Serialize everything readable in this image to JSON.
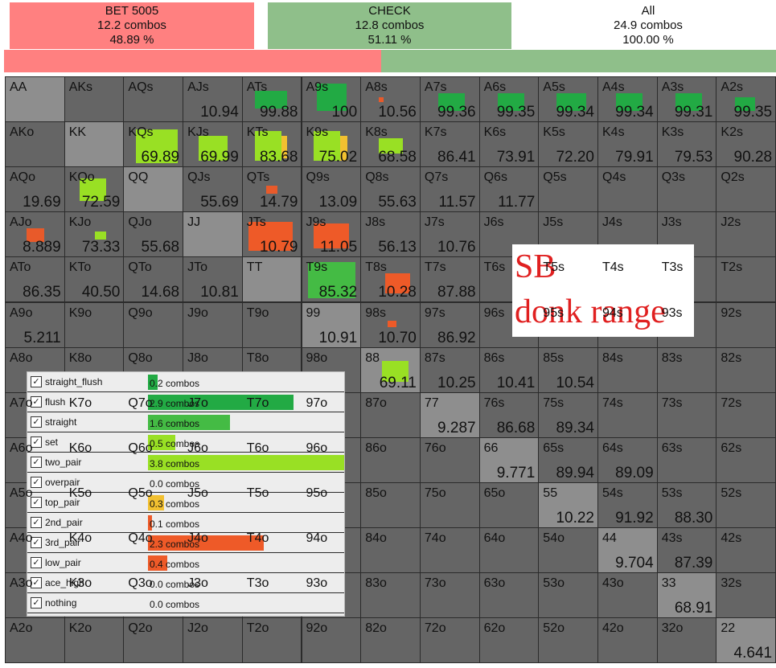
{
  "header": {
    "bet": {
      "label": "BET 5005",
      "combos": "12.2 combos",
      "pct": "48.89 %",
      "color": "#ff8080",
      "fraction": 0.4889
    },
    "check": {
      "label": "CHECK",
      "combos": "12.8 combos",
      "pct": "51.11 %",
      "color": "#8fbf8a",
      "fraction": 0.5111
    },
    "all": {
      "label": "All",
      "combos": "24.9 combos",
      "pct": "100.00 %"
    }
  },
  "grid": {
    "ranks": [
      "A",
      "K",
      "Q",
      "J",
      "T",
      "9",
      "8",
      "7",
      "6",
      "5",
      "4",
      "3",
      "2"
    ],
    "values": {
      "AJs": "10.94",
      "ATs": "99.88",
      "A9s": "100",
      "A8s": "10.56",
      "A7s": "99.36",
      "A6s": "99.35",
      "A5s": "99.34",
      "A4s": "99.34",
      "A3s": "99.31",
      "A2s": "99.35",
      "KQs": "69.89",
      "KJs": "69.99",
      "KTs": "83.68",
      "K9s": "75.02",
      "K8s": "68.58",
      "K7s": "86.41",
      "K6s": "73.91",
      "K5s": "72.20",
      "K4s": "79.91",
      "K3s": "79.53",
      "K2s": "90.28",
      "AQo": "19.69",
      "KQo": "72.59",
      "QJs": "55.69",
      "QTs": "14.79",
      "Q9s": "13.09",
      "Q8s": "55.63",
      "Q7s": "11.57",
      "Q6s": "11.77",
      "AJo": "8.889",
      "KJo": "73.33",
      "QJo": "55.68",
      "JTs": "10.79",
      "J9s": "11.05",
      "J8s": "56.13",
      "J7s": "10.76",
      "ATo": "86.35",
      "KTo": "40.50",
      "QTo": "14.68",
      "JTo": "10.81",
      "T9s": "85.32",
      "T8s": "10.28",
      "T7s": "87.88",
      "A9o": "5.211",
      "99": "10.91",
      "98s": "10.70",
      "97s": "86.92",
      "88": "69.11",
      "87s": "10.25",
      "86s": "10.41",
      "85s": "10.54",
      "77": "9.287",
      "76s": "86.68",
      "75s": "89.34",
      "66": "9.771",
      "65s": "89.94",
      "64s": "89.09",
      "55": "10.22",
      "54s": "91.92",
      "53s": "88.30",
      "44": "9.704",
      "43s": "87.39",
      "33": "68.91",
      "22": "4.641"
    },
    "markers": {
      "ATs": [
        [
          0.2,
          0.3,
          0.55,
          0.4,
          "#22aa44"
        ]
      ],
      "A9s": [
        [
          0.25,
          0.15,
          0.5,
          0.6,
          "#22aa44"
        ]
      ],
      "A8s": [
        [
          0.3,
          0.45,
          0.08,
          0.1,
          "#e85a2a"
        ]
      ],
      "A7s": [
        [
          0.3,
          0.35,
          0.45,
          0.4,
          "#22aa44"
        ]
      ],
      "A6s": [
        [
          0.3,
          0.35,
          0.45,
          0.4,
          "#22aa44"
        ]
      ],
      "A5s": [
        [
          0.3,
          0.35,
          0.5,
          0.4,
          "#22aa44"
        ]
      ],
      "A4s": [
        [
          0.3,
          0.35,
          0.45,
          0.4,
          "#22aa44"
        ]
      ],
      "A3s": [
        [
          0.3,
          0.35,
          0.45,
          0.4,
          "#22aa44"
        ]
      ],
      "A2s": [
        [
          0.3,
          0.45,
          0.35,
          0.3,
          "#22aa44"
        ]
      ],
      "KQs": [
        [
          0.2,
          0.15,
          0.7,
          0.75,
          "#99e024"
        ]
      ],
      "KJs": [
        [
          0.25,
          0.3,
          0.5,
          0.55,
          "#99e024"
        ]
      ],
      "KTs": [
        [
          0.2,
          0.2,
          0.45,
          0.65,
          "#99e024"
        ],
        [
          0.65,
          0.3,
          0.1,
          0.5,
          "#f2c030"
        ]
      ],
      "K9s": [
        [
          0.2,
          0.2,
          0.45,
          0.65,
          "#99e024"
        ],
        [
          0.65,
          0.3,
          0.12,
          0.55,
          "#f2c030"
        ]
      ],
      "K8s": [
        [
          0.3,
          0.35,
          0.4,
          0.35,
          "#99e024"
        ]
      ],
      "AQo": [],
      "KQo": [
        [
          0.25,
          0.25,
          0.45,
          0.5,
          "#99e024"
        ]
      ],
      "QTs": [
        [
          0.4,
          0.4,
          0.18,
          0.18,
          "#e85a2a"
        ]
      ],
      "AJo": [
        [
          0.35,
          0.35,
          0.3,
          0.3,
          "#e85a2a"
        ]
      ],
      "KJo": [
        [
          0.5,
          0.42,
          0.2,
          0.18,
          "#99e024"
        ]
      ],
      "JTs": [
        [
          0.1,
          0.2,
          0.75,
          0.65,
          "#ee5a28"
        ]
      ],
      "J9s": [
        [
          0.2,
          0.25,
          0.6,
          0.55,
          "#ee5a28"
        ]
      ],
      "T9s": [
        [
          0.1,
          0.1,
          0.8,
          0.8,
          "#44bb44"
        ]
      ],
      "T8s": [
        [
          0.4,
          0.35,
          0.42,
          0.45,
          "#ee5a28"
        ]
      ],
      "98s": [
        [
          0.45,
          0.4,
          0.15,
          0.15,
          "#ee5a28"
        ]
      ],
      "88": [
        [
          0.35,
          0.3,
          0.45,
          0.45,
          "#99e024"
        ]
      ]
    },
    "overlay": [
      "SB",
      "donk range"
    ]
  },
  "legend": [
    {
      "label": "straight_flush",
      "combos": "0.2 combos",
      "color": "#22aa44",
      "fraction": 0.05
    },
    {
      "label": "flush",
      "combos": "2.9 combos",
      "color": "#22aa44",
      "fraction": 0.74
    },
    {
      "label": "straight",
      "combos": "1.6 combos",
      "color": "#44bb44",
      "fraction": 0.42
    },
    {
      "label": "set",
      "combos": "0.5 combos",
      "color": "#99e024",
      "fraction": 0.14
    },
    {
      "label": "two_pair",
      "combos": "3.8 combos",
      "color": "#99e024",
      "fraction": 1.0
    },
    {
      "label": "overpair",
      "combos": "0.0 combos",
      "color": "#f2c030",
      "fraction": 0.0
    },
    {
      "label": "top_pair",
      "combos": "0.3 combos",
      "color": "#f2c030",
      "fraction": 0.08
    },
    {
      "label": "2nd_pair",
      "combos": "0.1 combos",
      "color": "#ee5a28",
      "fraction": 0.02
    },
    {
      "label": "3rd_pair",
      "combos": "2.3 combos",
      "color": "#ee5a28",
      "fraction": 0.59
    },
    {
      "label": "low_pair",
      "combos": "0.4 combos",
      "color": "#ee5a28",
      "fraction": 0.1
    },
    {
      "label": "ace_high",
      "combos": "0.0 combos",
      "color": "#cccccc",
      "fraction": 0.0
    },
    {
      "label": "nothing",
      "combos": "0.0 combos",
      "color": "#cccccc",
      "fraction": 0.0
    }
  ]
}
